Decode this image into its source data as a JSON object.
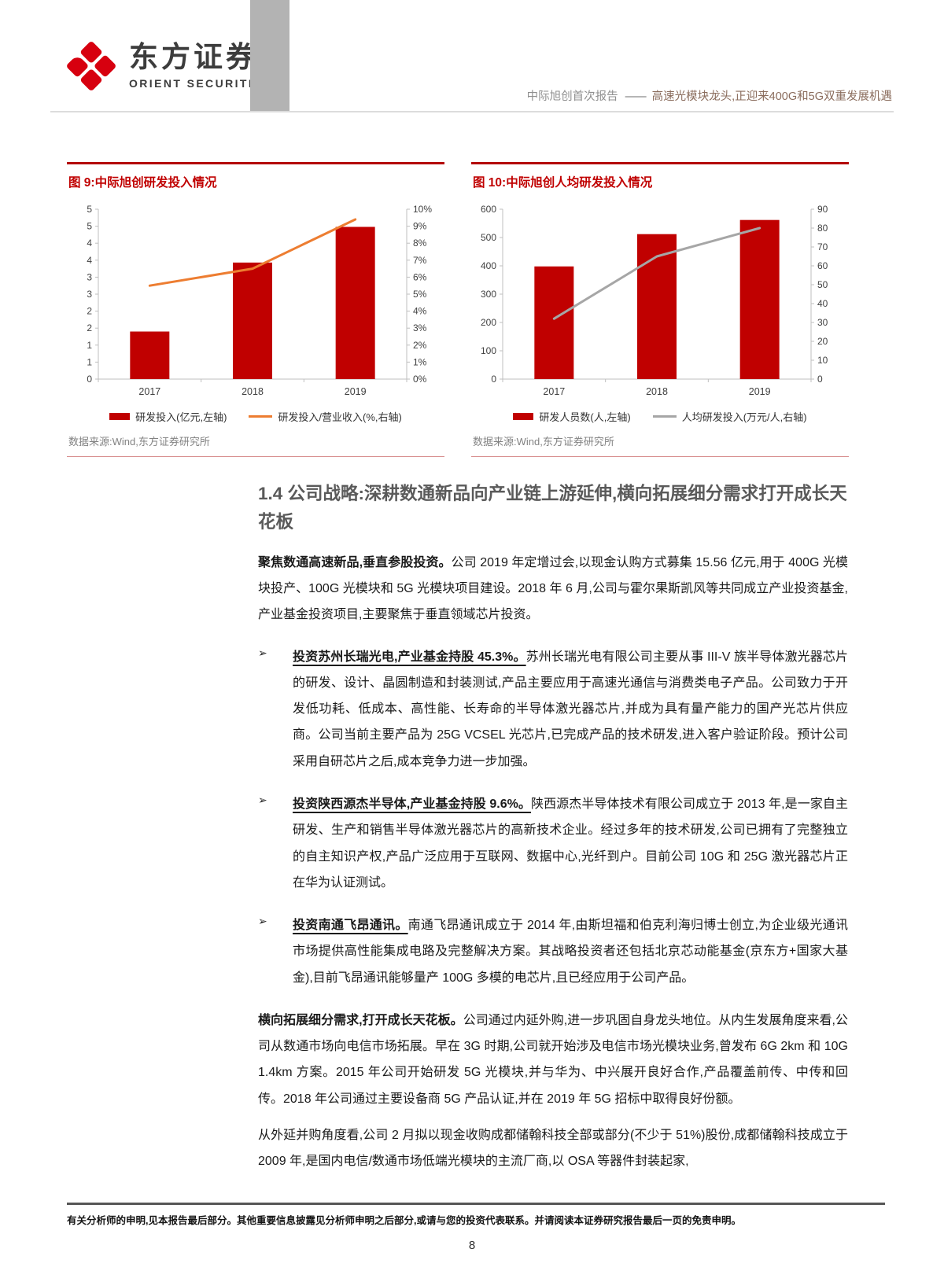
{
  "header": {
    "logo_cn": "东方证券",
    "logo_en": "ORIENT SECURITIES",
    "report_label": "中际旭创首次报告",
    "dash": "——",
    "report_title": "高速光模块龙头,正迎来400G和5G双重发展机遇"
  },
  "colors": {
    "accent_red": "#c00000",
    "bar_red": "#c00000",
    "line_orange": "#ed7d31",
    "line_gray": "#a6a6a6"
  },
  "chart_data": [
    {
      "type": "bar-line",
      "title": "图 9:中际旭创研发投入情况",
      "categories": [
        "2017",
        "2018",
        "2019"
      ],
      "series": [
        {
          "name": "研发投入(亿元,左轴)",
          "type": "bar",
          "axis": "left",
          "values": [
            1.4,
            3.43,
            4.48
          ],
          "color": "#c00000"
        },
        {
          "name": "研发投入/营业收入(%,右轴)",
          "type": "line",
          "axis": "right",
          "values": [
            5.5,
            6.5,
            9.4
          ],
          "color": "#ed7d31"
        }
      ],
      "left_axis": {
        "min": 0,
        "max": 5,
        "tick_labels": [
          "5",
          "5",
          "4",
          "4",
          "3",
          "3",
          "2",
          "2",
          "1",
          "1",
          "0"
        ]
      },
      "right_axis": {
        "min": 0,
        "max": 10,
        "tick_labels": [
          "10%",
          "9%",
          "8%",
          "7%",
          "6%",
          "5%",
          "4%",
          "3%",
          "2%",
          "1%",
          "0%"
        ]
      },
      "legend_position": "bottom",
      "grid": false,
      "source": "数据来源:Wind,东方证券研究所"
    },
    {
      "type": "bar-line",
      "title": "图 10:中际旭创人均研发投入情况",
      "categories": [
        "2017",
        "2018",
        "2019"
      ],
      "series": [
        {
          "name": "研发人员数(人,左轴)",
          "type": "bar",
          "axis": "left",
          "values": [
            398,
            512,
            562
          ],
          "color": "#c00000"
        },
        {
          "name": "人均研发投入(万元/人,右轴)",
          "type": "line",
          "axis": "right",
          "values": [
            32,
            65,
            80
          ],
          "color": "#a6a6a6"
        }
      ],
      "left_axis": {
        "min": 0,
        "max": 600,
        "tick_labels": [
          "600",
          "500",
          "400",
          "300",
          "200",
          "100",
          "0"
        ]
      },
      "right_axis": {
        "min": 0,
        "max": 90,
        "tick_labels": [
          "90",
          "80",
          "70",
          "60",
          "50",
          "40",
          "30",
          "20",
          "10",
          "0"
        ]
      },
      "legend_position": "bottom",
      "grid": false,
      "source": "数据来源:Wind,东方证券研究所"
    }
  ],
  "section": {
    "heading": "1.4 公司战略:深耕数通新品向产业链上游延伸,横向拓展细分需求打开成长天花板",
    "bullet_marker": "➢",
    "para1_bold": "聚焦数通高速新品,垂直参股投资。",
    "para1_rest": "公司 2019 年定增过会,以现金认购方式募集 15.56 亿元,用于 400G 光模块投产、100G 光模块和 5G 光模块项目建设。2018 年 6 月,公司与霍尔果斯凯风等共同成立产业投资基金,产业基金投资项目,主要聚焦于垂直领域芯片投资。",
    "bullets": [
      {
        "lead": "投资苏州长瑞光电,产业基金持股 45.3%。",
        "rest": "苏州长瑞光电有限公司主要从事 III-V 族半导体激光器芯片的研发、设计、晶圆制造和封装测试,产品主要应用于高速光通信与消费类电子产品。公司致力于开发低功耗、低成本、高性能、长寿命的半导体激光器芯片,并成为具有量产能力的国产光芯片供应商。公司当前主要产品为 25G VCSEL 光芯片,已完成产品的技术研发,进入客户验证阶段。预计公司采用自研芯片之后,成本竞争力进一步加强。"
      },
      {
        "lead": "投资陕西源杰半导体,产业基金持股 9.6%。",
        "rest": "陕西源杰半导体技术有限公司成立于 2013 年,是一家自主研发、生产和销售半导体激光器芯片的高新技术企业。经过多年的技术研发,公司已拥有了完整独立的自主知识产权,产品广泛应用于互联网、数据中心,光纤到户。目前公司 10G 和 25G 激光器芯片正在华为认证测试。"
      },
      {
        "lead": "投资南通飞昂通讯。",
        "rest": "南通飞昂通讯成立于 2014 年,由斯坦福和伯克利海归博士创立,为企业级光通讯市场提供高性能集成电路及完整解决方案。其战略投资者还包括北京芯动能基金(京东方+国家大基金),目前飞昂通讯能够量产 100G 多模的电芯片,且已经应用于公司产品。"
      }
    ],
    "para2_bold": "横向拓展细分需求,打开成长天花板。",
    "para2_rest": "公司通过内延外购,进一步巩固自身龙头地位。从内生发展角度来看,公司从数通市场向电信市场拓展。早在 3G 时期,公司就开始涉及电信市场光模块业务,曾发布 6G 2km 和 10G 1.4km 方案。2015 年公司开始研发 5G 光模块,并与华为、中兴展开良好合作,产品覆盖前传、中传和回传。2018 年公司通过主要设备商 5G 产品认证,并在 2019 年 5G 招标中取得良好份额。",
    "para3": "从外延并购角度看,公司 2 月拟以现金收购成都储翰科技全部或部分(不少于 51%)股份,成都储翰科技成立于 2009 年,是国内电信/数通市场低端光模块的主流厂商,以 OSA 等器件封装起家,"
  },
  "footer": {
    "disclaimer": "有关分析师的申明,见本报告最后部分。其他重要信息披露见分析师申明之后部分,或请与您的投资代表联系。并请阅读本证券研究报告最后一页的免责申明。",
    "page_number": "8"
  }
}
